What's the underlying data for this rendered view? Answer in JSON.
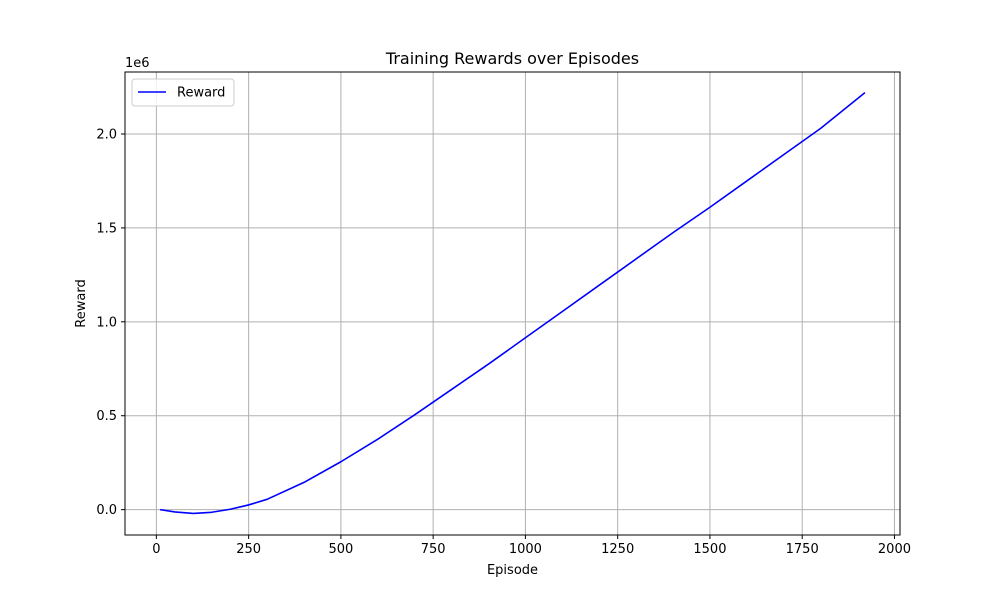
{
  "chart_data": {
    "type": "line",
    "title": "Training Rewards over Episodes",
    "xlabel": "Episode",
    "ylabel": "Reward",
    "y_offset_label": "1e6",
    "xlim": [
      -85,
      2015
    ],
    "ylim": [
      -0.135,
      2.33
    ],
    "x_ticks": [
      0,
      250,
      500,
      750,
      1000,
      1250,
      1500,
      1750,
      2000
    ],
    "x_tick_labels": [
      "0",
      "250",
      "500",
      "750",
      "1000",
      "1250",
      "1500",
      "1750",
      "2000"
    ],
    "y_ticks": [
      0.0,
      0.5,
      1.0,
      1.5,
      2.0
    ],
    "y_tick_labels": [
      "0.0",
      "0.5",
      "1.0",
      "1.5",
      "2.0"
    ],
    "grid": true,
    "legend": {
      "position": "top-left",
      "entries": [
        "Reward"
      ]
    },
    "series": [
      {
        "name": "Reward",
        "color": "#0000ff",
        "x": [
          10,
          50,
          100,
          150,
          200,
          250,
          300,
          400,
          500,
          600,
          700,
          800,
          900,
          1000,
          1100,
          1200,
          1300,
          1400,
          1500,
          1600,
          1700,
          1800,
          1920
        ],
        "y": [
          0.0,
          -0.012,
          -0.02,
          -0.014,
          0.002,
          0.025,
          0.055,
          0.145,
          0.255,
          0.375,
          0.505,
          0.64,
          0.775,
          0.915,
          1.055,
          1.195,
          1.335,
          1.475,
          1.61,
          1.75,
          1.89,
          2.03,
          2.22
        ]
      }
    ]
  }
}
